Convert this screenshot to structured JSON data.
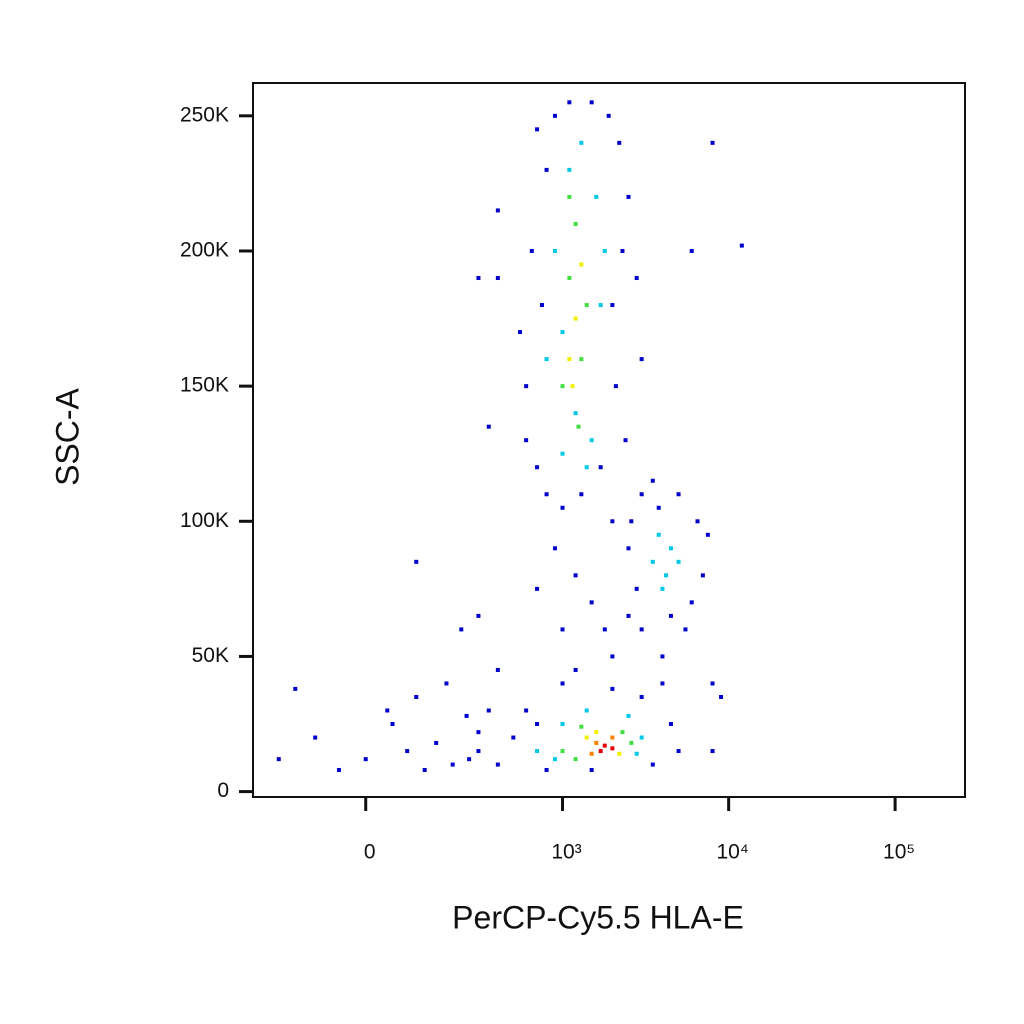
{
  "chart_data": {
    "type": "scatter",
    "xscale": "biexponential",
    "xlabel": "PerCP-Cy5.5 HLA-E",
    "ylabel": "SSC-A",
    "xlim": [
      -300,
      263000
    ],
    "ylim": [
      -2000,
      262144
    ],
    "xticks": [
      0,
      {
        "value": 1000,
        "label": "10³"
      },
      {
        "value": 10000,
        "label": "10⁴"
      },
      {
        "value": 100000,
        "label": "10⁵"
      }
    ],
    "yticks": [
      0,
      {
        "value": 50000,
        "label": "50K"
      },
      {
        "value": 100000,
        "label": "100K"
      },
      {
        "value": 150000,
        "label": "150K"
      },
      {
        "value": 200000,
        "label": "200K"
      },
      {
        "value": 250000,
        "label": "250K"
      }
    ],
    "series": [
      {
        "color": "#0000cc",
        "x": [
          700,
          800,
          900,
          1900,
          2200,
          2300,
          2100,
          1700,
          800,
          600,
          650,
          750,
          2000,
          1000,
          1300,
          1500,
          1100,
          2500,
          550,
          600,
          2400,
          3000,
          400,
          2800,
          700,
          2000,
          900,
          1200,
          1500,
          1800,
          2000,
          1000,
          700,
          2500,
          3000,
          2600,
          2500,
          3000,
          4000,
          5500,
          7000,
          6500,
          5000,
          3500,
          2800,
          6000,
          4500,
          3800,
          7500,
          400,
          500,
          600,
          1000,
          2000,
          3000,
          4500,
          5000,
          3500,
          1500,
          800,
          700,
          4000,
          1200,
          300,
          -150,
          -100,
          0,
          50,
          100,
          150,
          200,
          250,
          300,
          -50,
          80,
          180,
          350,
          -200,
          120,
          260,
          40,
          400,
          230,
          300,
          100,
          8000,
          9000,
          8000,
          6000,
          12000,
          8000,
          400,
          350,
          300
        ],
        "y": [
          120000,
          230000,
          250000,
          250000,
          240000,
          200000,
          150000,
          120000,
          110000,
          150000,
          200000,
          180000,
          180000,
          105000,
          110000,
          255000,
          255000,
          220000,
          170000,
          130000,
          130000,
          160000,
          190000,
          190000,
          245000,
          100000,
          90000,
          80000,
          70000,
          60000,
          50000,
          60000,
          75000,
          65000,
          110000,
          100000,
          90000,
          60000,
          50000,
          60000,
          80000,
          100000,
          110000,
          115000,
          75000,
          70000,
          65000,
          105000,
          95000,
          10000,
          20000,
          30000,
          40000,
          38000,
          35000,
          25000,
          15000,
          10000,
          8000,
          8000,
          25000,
          40000,
          45000,
          15000,
          38000,
          20000,
          12000,
          25000,
          35000,
          18000,
          10000,
          28000,
          22000,
          8000,
          15000,
          40000,
          30000,
          12000,
          8000,
          12000,
          30000,
          45000,
          60000,
          65000,
          85000,
          15000,
          35000,
          40000,
          200000,
          202000,
          240000,
          215000,
          135000,
          190000
        ]
      },
      {
        "color": "#00c8e6",
        "x": [
          900,
          1000,
          1200,
          1500,
          1600,
          1300,
          1100,
          1700,
          800,
          1400,
          1000,
          1800,
          3500,
          4000,
          4500,
          3800,
          4200,
          5000,
          700,
          1000,
          2500,
          3000,
          900,
          2800,
          1400
        ],
        "y": [
          200000,
          170000,
          140000,
          130000,
          220000,
          240000,
          230000,
          180000,
          160000,
          120000,
          125000,
          200000,
          85000,
          75000,
          90000,
          95000,
          80000,
          85000,
          15000,
          25000,
          28000,
          20000,
          12000,
          14000,
          30000
        ]
      },
      {
        "color": "#40e040",
        "x": [
          1100,
          1300,
          1200,
          1000,
          1400,
          1250,
          1100,
          1000,
          1300,
          2300,
          2600,
          1200
        ],
        "y": [
          190000,
          160000,
          210000,
          150000,
          180000,
          135000,
          220000,
          15000,
          24000,
          22000,
          18000,
          12000
        ]
      },
      {
        "color": "#f0f000",
        "x": [
          1200,
          1100,
          1300,
          1150,
          1400,
          2200,
          1600
        ],
        "y": [
          175000,
          160000,
          195000,
          150000,
          20000,
          14000,
          22000
        ]
      },
      {
        "color": "#ff8000",
        "x": [
          1600,
          2000,
          1500
        ],
        "y": [
          18000,
          20000,
          14000
        ]
      },
      {
        "color": "#e60000",
        "x": [
          1800,
          1700,
          2000
        ],
        "y": [
          17000,
          15000,
          16000
        ]
      }
    ]
  }
}
